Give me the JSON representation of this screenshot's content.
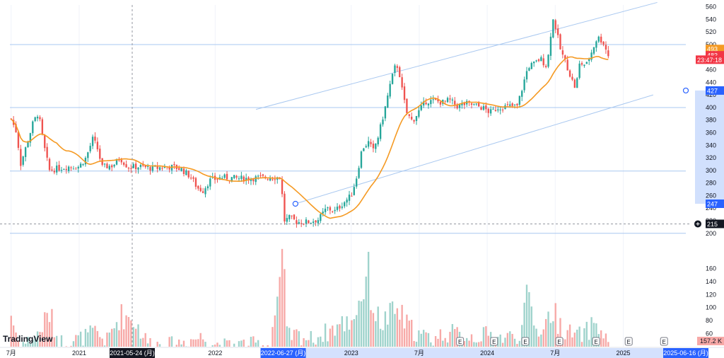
{
  "chart_data": {
    "type": "candlestick",
    "watermark": "TradingView",
    "y_axis": {
      "ticks": [
        200,
        220,
        240,
        260,
        280,
        300,
        320,
        340,
        360,
        380,
        400,
        420,
        440,
        460,
        480,
        500,
        520,
        540,
        560
      ],
      "ylim": [
        193,
        563
      ],
      "position": "right"
    },
    "volume_axis": {
      "ticks": [
        60,
        80,
        100,
        120,
        140,
        160
      ],
      "ylim": [
        40,
        168
      ]
    },
    "x_axis": {
      "ticks": [
        {
          "t": 0.0,
          "label": "7月"
        },
        {
          "t": 0.5,
          "label": "2021"
        },
        {
          "t": 1.5,
          "label": "2022"
        },
        {
          "t": 2.5,
          "label": "2023"
        },
        {
          "t": 3.0,
          "label": "7月"
        },
        {
          "t": 3.5,
          "label": "2024"
        },
        {
          "t": 4.0,
          "label": "7月"
        },
        {
          "t": 4.5,
          "label": "2025"
        }
      ],
      "tlim": [
        -0.03,
        4.96
      ],
      "crosshair_labels": [
        {
          "t": 0.89,
          "label": "2021-05-24 (月)",
          "style": "dark"
        },
        {
          "t": 2.0,
          "label": "2022-06-27 (月)",
          "style": "blue"
        },
        {
          "t": 4.96,
          "label": "2025-06-16 (月)",
          "style": "blue"
        }
      ]
    },
    "price_labels": [
      {
        "value": 493,
        "text": "493",
        "color": "#f59a23"
      },
      {
        "value": 483,
        "text": "483",
        "color": "#f23645"
      },
      {
        "value": 476,
        "text": "23:47:18",
        "color": "#f23645"
      },
      {
        "value": 427,
        "text": "427",
        "color": "#2962ff"
      },
      {
        "value": 247,
        "text": "247",
        "color": "#2962ff"
      },
      {
        "value": 215,
        "text": "215",
        "color": "#131722"
      }
    ],
    "volume_label": "157.2 K",
    "earnings_marker": "E",
    "earnings_t": [
      3.3,
      3.55,
      3.78,
      4.03,
      4.3,
      4.54,
      4.8
    ],
    "horizontal_levels": [
      500,
      400,
      299,
      200
    ],
    "crosshair_price": 215,
    "trend_channel": {
      "upper": [
        [
          1.8,
          397
        ],
        [
          4.75,
          567
        ]
      ],
      "lower": [
        [
          2.09,
          247
        ],
        [
          4.72,
          420
        ]
      ],
      "anchor": [
        4.96,
        427
      ]
    },
    "moving_average_color": "#f59a23",
    "up_color": "#26a69a",
    "down_color": "#ef5350",
    "close_anchors": [
      [
        0.0,
        382
      ],
      [
        0.04,
        360
      ],
      [
        0.07,
        310
      ],
      [
        0.12,
        345
      ],
      [
        0.16,
        375
      ],
      [
        0.2,
        392
      ],
      [
        0.24,
        340
      ],
      [
        0.28,
        300
      ],
      [
        0.34,
        303
      ],
      [
        0.42,
        306
      ],
      [
        0.5,
        306
      ],
      [
        0.55,
        320
      ],
      [
        0.6,
        350
      ],
      [
        0.63,
        338
      ],
      [
        0.67,
        305
      ],
      [
        0.75,
        308
      ],
      [
        0.8,
        320
      ],
      [
        0.86,
        305
      ],
      [
        0.95,
        306
      ],
      [
        1.05,
        303
      ],
      [
        1.13,
        306
      ],
      [
        1.2,
        305
      ],
      [
        1.25,
        302
      ],
      [
        1.32,
        290
      ],
      [
        1.37,
        272
      ],
      [
        1.41,
        268
      ],
      [
        1.46,
        284
      ],
      [
        1.55,
        289
      ],
      [
        1.62,
        288
      ],
      [
        1.7,
        287
      ],
      [
        1.8,
        288
      ],
      [
        1.9,
        289
      ],
      [
        1.98,
        289
      ],
      [
        2.01,
        220
      ],
      [
        2.05,
        225
      ],
      [
        2.1,
        218
      ],
      [
        2.18,
        218
      ],
      [
        2.26,
        222
      ],
      [
        2.32,
        240
      ],
      [
        2.38,
        235
      ],
      [
        2.44,
        248
      ],
      [
        2.5,
        260
      ],
      [
        2.54,
        290
      ],
      [
        2.58,
        335
      ],
      [
        2.63,
        345
      ],
      [
        2.66,
        330
      ],
      [
        2.7,
        355
      ],
      [
        2.75,
        400
      ],
      [
        2.79,
        440
      ],
      [
        2.83,
        470
      ],
      [
        2.85,
        460
      ],
      [
        2.88,
        420
      ],
      [
        2.91,
        390
      ],
      [
        2.95,
        378
      ],
      [
        3.0,
        395
      ],
      [
        3.05,
        410
      ],
      [
        3.12,
        410
      ],
      [
        3.18,
        408
      ],
      [
        3.22,
        412
      ],
      [
        3.28,
        402
      ],
      [
        3.35,
        406
      ],
      [
        3.42,
        403
      ],
      [
        3.48,
        398
      ],
      [
        3.52,
        392
      ],
      [
        3.58,
        400
      ],
      [
        3.66,
        402
      ],
      [
        3.72,
        402
      ],
      [
        3.75,
        425
      ],
      [
        3.8,
        465
      ],
      [
        3.85,
        470
      ],
      [
        3.89,
        478
      ],
      [
        3.94,
        465
      ],
      [
        3.98,
        542
      ],
      [
        4.0,
        530
      ],
      [
        4.04,
        490
      ],
      [
        4.08,
        470
      ],
      [
        4.12,
        445
      ],
      [
        4.15,
        430
      ],
      [
        4.18,
        470
      ],
      [
        4.23,
        468
      ],
      [
        4.27,
        490
      ],
      [
        4.31,
        512
      ],
      [
        4.35,
        505
      ],
      [
        4.39,
        483
      ]
    ],
    "volume_anchors": [
      [
        0.0,
        90
      ],
      [
        0.05,
        50
      ],
      [
        0.1,
        45
      ],
      [
        0.2,
        60
      ],
      [
        0.28,
        92
      ],
      [
        0.35,
        48
      ],
      [
        0.5,
        52
      ],
      [
        0.62,
        62
      ],
      [
        0.7,
        48
      ],
      [
        0.8,
        88
      ],
      [
        0.89,
        85
      ],
      [
        1.0,
        48
      ],
      [
        1.1,
        44
      ],
      [
        1.2,
        45
      ],
      [
        1.3,
        50
      ],
      [
        1.4,
        55
      ],
      [
        1.5,
        45
      ],
      [
        1.6,
        42
      ],
      [
        1.7,
        45
      ],
      [
        1.8,
        45
      ],
      [
        1.9,
        42
      ],
      [
        2.0,
        170
      ],
      [
        2.03,
        55
      ],
      [
        2.1,
        58
      ],
      [
        2.2,
        52
      ],
      [
        2.3,
        60
      ],
      [
        2.4,
        72
      ],
      [
        2.5,
        80
      ],
      [
        2.58,
        120
      ],
      [
        2.62,
        160
      ],
      [
        2.66,
        100
      ],
      [
        2.72,
        75
      ],
      [
        2.8,
        90
      ],
      [
        2.85,
        95
      ],
      [
        2.9,
        75
      ],
      [
        3.0,
        58
      ],
      [
        3.1,
        52
      ],
      [
        3.2,
        62
      ],
      [
        3.3,
        58
      ],
      [
        3.4,
        56
      ],
      [
        3.5,
        58
      ],
      [
        3.6,
        54
      ],
      [
        3.7,
        56
      ],
      [
        3.75,
        62
      ],
      [
        3.8,
        120
      ],
      [
        3.86,
        65
      ],
      [
        3.92,
        72
      ],
      [
        3.98,
        98
      ],
      [
        4.02,
        78
      ],
      [
        4.08,
        64
      ],
      [
        4.15,
        56
      ],
      [
        4.22,
        60
      ],
      [
        4.3,
        80
      ],
      [
        4.35,
        55
      ],
      [
        4.39,
        50
      ]
    ]
  }
}
